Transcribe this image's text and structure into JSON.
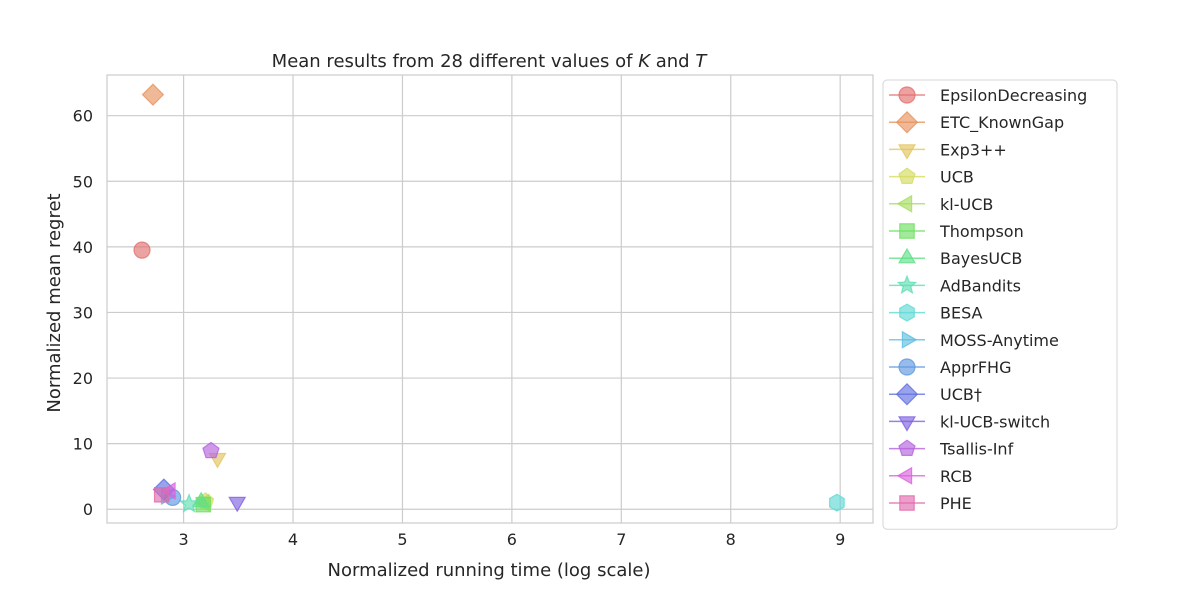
{
  "chart_data": {
    "type": "scatter",
    "title": "Mean results from 28 different values of K and T",
    "title_parts": [
      {
        "text": "Mean results from 28 different values of ",
        "italic": false
      },
      {
        "text": "K",
        "italic": true
      },
      {
        "text": " and ",
        "italic": false
      },
      {
        "text": "T",
        "italic": true
      }
    ],
    "xlabel": "Normalized running time (log scale)",
    "ylabel": "Normalized mean regret",
    "xlim": [
      2.3,
      9.3
    ],
    "ylim": [
      -2.1,
      66.2
    ],
    "xticks": [
      3,
      4,
      5,
      6,
      7,
      8,
      9
    ],
    "yticks": [
      0,
      10,
      20,
      30,
      40,
      50,
      60
    ],
    "grid": true,
    "legend_position": "right",
    "series": [
      {
        "name": "EpsilonDecreasing",
        "marker": "circle",
        "color": "#e1706e",
        "x": 2.62,
        "y": 39.5
      },
      {
        "name": "ETC_KnownGap",
        "marker": "diamond",
        "color": "#e6935f",
        "x": 2.72,
        "y": 63.2
      },
      {
        "name": "Exp3++",
        "marker": "triangle-down",
        "color": "#e2c55f",
        "x": 3.31,
        "y": 7.8
      },
      {
        "name": "UCB",
        "marker": "pentagon",
        "color": "#d4dc5f",
        "x": 3.2,
        "y": 1.2
      },
      {
        "name": "kl-UCB",
        "marker": "triangle-left",
        "color": "#a8dd5f",
        "x": 3.19,
        "y": 1.0
      },
      {
        "name": "Thompson",
        "marker": "square",
        "color": "#6fde62",
        "x": 3.18,
        "y": 0.7
      },
      {
        "name": "BayesUCB",
        "marker": "triangle-up",
        "color": "#5fdf87",
        "x": 3.16,
        "y": 1.1
      },
      {
        "name": "AdBandits",
        "marker": "star",
        "color": "#5fdeb2",
        "x": 3.05,
        "y": 0.8
      },
      {
        "name": "BESA",
        "marker": "hexagon",
        "color": "#5fd9d6",
        "x": 8.97,
        "y": 1.0
      },
      {
        "name": "MOSS-Anytime",
        "marker": "triangle-right",
        "color": "#5fbfe1",
        "x": 2.84,
        "y": 2.0
      },
      {
        "name": "ApprFHG",
        "marker": "circle",
        "color": "#5f98e0",
        "x": 2.9,
        "y": 1.8
      },
      {
        "name": "UCB†",
        "marker": "diamond",
        "color": "#6271e0",
        "x": 2.82,
        "y": 3.0
      },
      {
        "name": "kl-UCB-switch",
        "marker": "triangle-down",
        "color": "#7f62e0",
        "x": 3.49,
        "y": 1.1
      },
      {
        "name": "Tsallis-Inf",
        "marker": "pentagon",
        "color": "#b562df",
        "x": 3.25,
        "y": 8.9
      },
      {
        "name": "RCB",
        "marker": "triangle-left",
        "color": "#dc62dd",
        "x": 2.88,
        "y": 2.8
      },
      {
        "name": "PHE",
        "marker": "square",
        "color": "#e06cad",
        "x": 2.8,
        "y": 2.2
      }
    ]
  }
}
